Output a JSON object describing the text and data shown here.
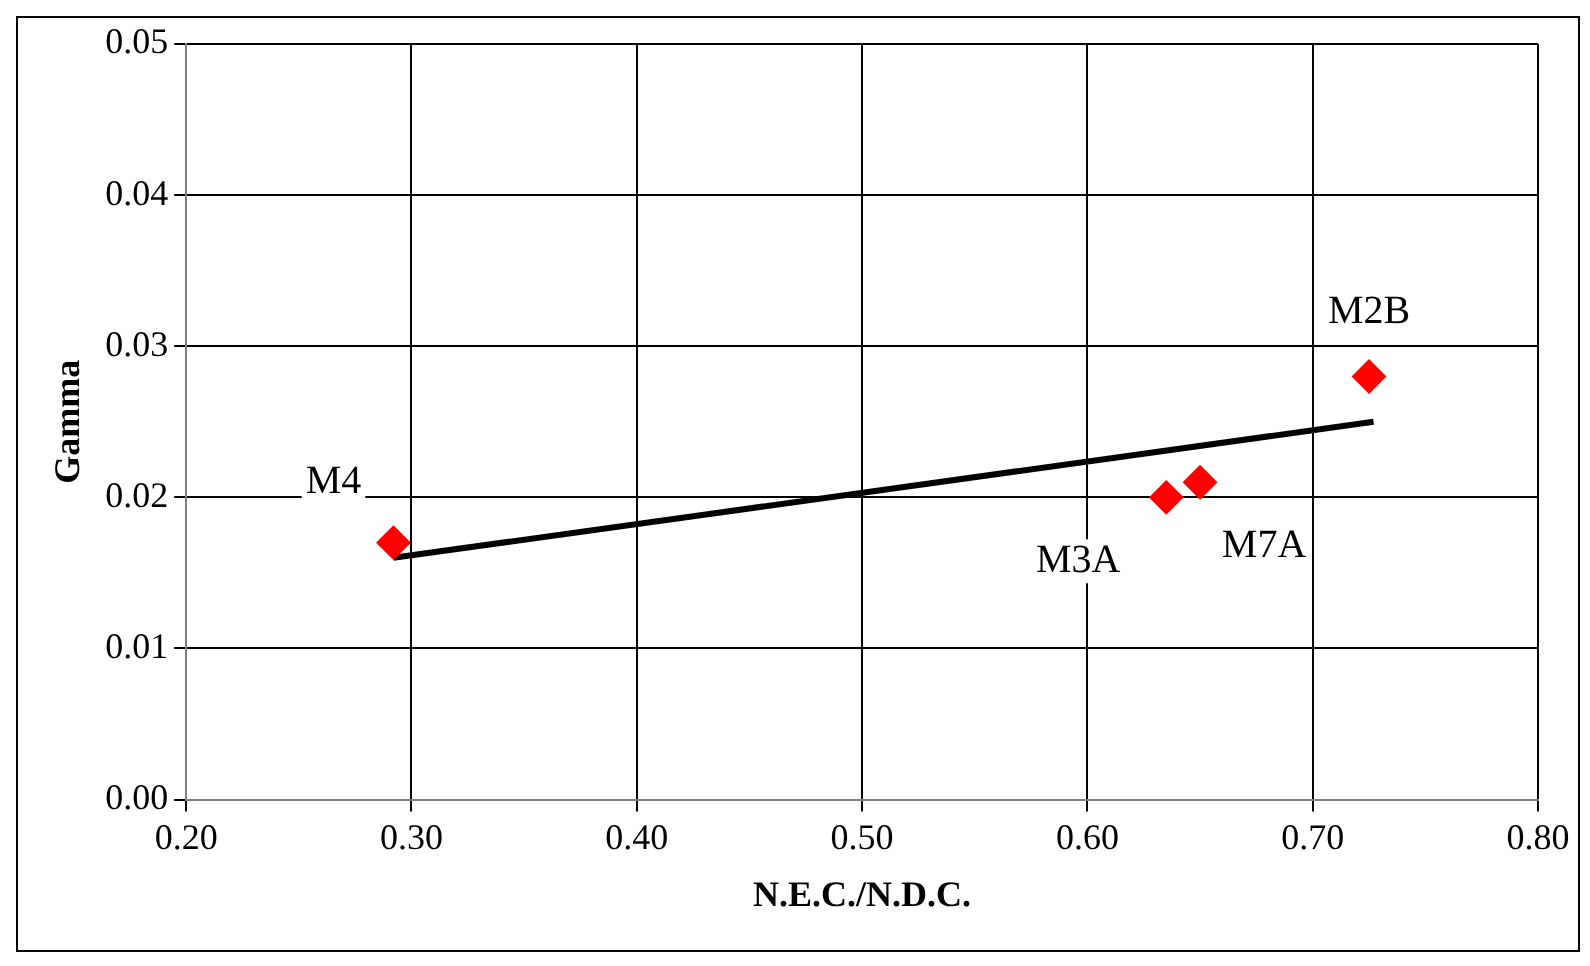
{
  "chart_data": {
    "type": "scatter",
    "xlabel": "N.E.C./N.D.C.",
    "ylabel": "Gamma",
    "xlim": [
      0.2,
      0.8
    ],
    "xticks": [
      {
        "value": 0.2,
        "label": "0.20"
      },
      {
        "value": 0.3,
        "label": "0.30"
      },
      {
        "value": 0.4,
        "label": "0.40"
      },
      {
        "value": 0.5,
        "label": "0.50"
      },
      {
        "value": 0.6,
        "label": "0.60"
      },
      {
        "value": 0.7,
        "label": "0.70"
      },
      {
        "value": 0.8,
        "label": "0.80"
      }
    ],
    "ylim": [
      0,
      0.05
    ],
    "yticks": [
      {
        "value": 0,
        "label": "0.00"
      },
      {
        "value": 0.01,
        "label": "0.01"
      },
      {
        "value": 0.02,
        "label": "0.02"
      },
      {
        "value": 0.03,
        "label": "0.03"
      },
      {
        "value": 0.04,
        "label": "0.04"
      },
      {
        "value": 0.05,
        "label": "0.05"
      }
    ],
    "grid": true,
    "marker": "diamond",
    "series": [
      {
        "type": "scatter",
        "color": "#ff0000",
        "x": [
          0.292,
          0.635,
          0.65,
          0.725
        ],
        "values": [
          0.017,
          0.02,
          0.021,
          0.028
        ]
      },
      {
        "type": "line",
        "color": "#000000",
        "marker": "none",
        "x": [
          0.292,
          0.727
        ],
        "values": [
          0.016,
          0.025
        ]
      }
    ],
    "annotations": [
      {
        "text": "M4",
        "x": 0.292,
        "y": 0.017
      },
      {
        "text": "M3A",
        "x": 0.635,
        "y": 0.02
      },
      {
        "text": "M7A",
        "x": 0.65,
        "y": 0.021
      },
      {
        "text": "M2B",
        "x": 0.725,
        "y": 0.028
      }
    ]
  }
}
